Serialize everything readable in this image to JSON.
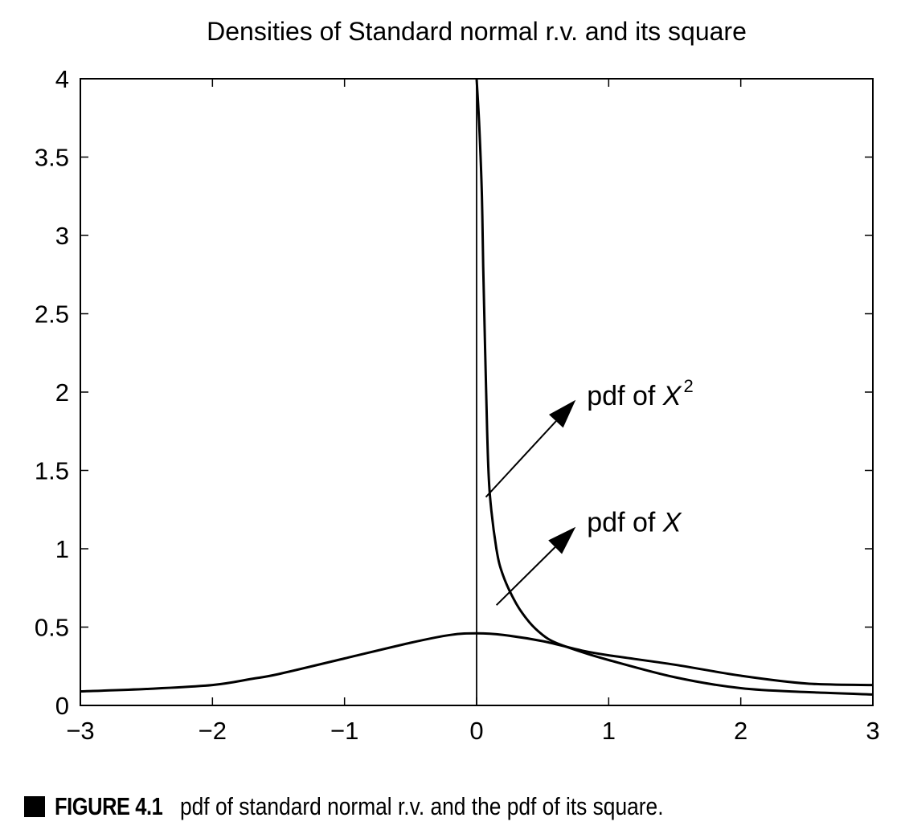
{
  "chart_data": {
    "type": "line",
    "title": "Densities of Standard normal r.v. and its square",
    "xlabel": "",
    "ylabel": "",
    "xlim": [
      -3,
      3
    ],
    "ylim": [
      0,
      4
    ],
    "xticks": [
      -3,
      -2,
      -1,
      0,
      1,
      2,
      3
    ],
    "xtick_labels": [
      "−3",
      "−2",
      "−1",
      "0",
      "1",
      "2",
      "3"
    ],
    "yticks": [
      0,
      0.5,
      1,
      1.5,
      2,
      2.5,
      3,
      3.5,
      4
    ],
    "ytick_labels": [
      "0",
      "0.5",
      "1",
      "1.5",
      "2",
      "2.5",
      "3",
      "3.5",
      "4"
    ],
    "grid": false,
    "legend": "none",
    "series": [
      {
        "name": "pdf of X",
        "x": [
          -3,
          -2.5,
          -2,
          -1.7,
          -1.5,
          -1,
          -0.5,
          -0.2,
          0,
          0.2,
          0.5,
          0.8,
          1,
          1.5,
          2,
          2.5,
          3
        ],
        "y": [
          0.09,
          0.105,
          0.13,
          0.17,
          0.2,
          0.3,
          0.4,
          0.45,
          0.46,
          0.45,
          0.41,
          0.35,
          0.32,
          0.26,
          0.19,
          0.14,
          0.13
        ]
      },
      {
        "name": "pdf of X^2",
        "x": [
          0,
          0.02,
          0.04,
          0.05,
          0.08,
          0.1,
          0.15,
          0.2,
          0.3,
          0.4,
          0.5,
          0.6,
          0.8,
          1,
          1.5,
          2,
          2.5,
          3
        ],
        "y": [
          4,
          3.7,
          3.25,
          2.8,
          1.75,
          1.35,
          1.0,
          0.83,
          0.65,
          0.53,
          0.45,
          0.4,
          0.34,
          0.29,
          0.18,
          0.11,
          0.085,
          0.07
        ]
      }
    ],
    "annotations": [
      {
        "text_main": "pdf of ",
        "text_var": "X",
        "text_sup": "2",
        "arrow_from": [
          0.07,
          1.33
        ],
        "arrow_to": [
          0.75,
          1.95
        ]
      },
      {
        "text_main": "pdf of ",
        "text_var": "X",
        "text_sup": "",
        "arrow_from": [
          0.15,
          0.64
        ],
        "arrow_to": [
          0.75,
          1.14
        ]
      }
    ],
    "vline_x": 0
  },
  "caption": {
    "label": "FIGURE 4.1",
    "text": "pdf of standard normal r.v. and the pdf of its square."
  }
}
